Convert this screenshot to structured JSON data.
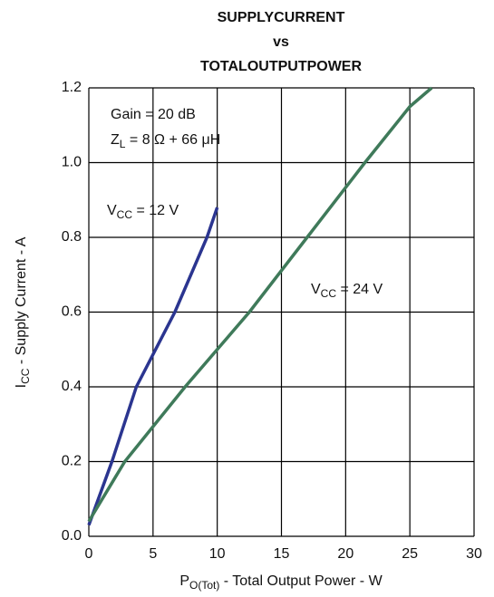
{
  "chart_data": {
    "type": "line",
    "title": [
      "SUPPLYCURRENT",
      "vs",
      "TOTALOUTPUTPOWER"
    ],
    "x_label": {
      "main": "P",
      "sub": "O(Tot)",
      "rest": " - Total Output Power - W"
    },
    "y_label": {
      "main": "I",
      "sub": "CC",
      "rest": " - Supply Current - A"
    },
    "annotations": [
      {
        "main": "Gain = 20 dB"
      },
      {
        "main": "Z",
        "sub": "L",
        "rest": " = 8 Ω + 66 μH"
      }
    ],
    "xlim": [
      0,
      30
    ],
    "ylim": [
      0,
      1.2
    ],
    "xticks": [
      0,
      5,
      10,
      15,
      20,
      25,
      30
    ],
    "yticks": [
      {
        "value": 0,
        "label": "0.0"
      },
      0.2,
      0.4,
      0.6,
      0.8,
      {
        "value": 1,
        "label": "1.0"
      },
      1.2
    ],
    "grid": true,
    "series": [
      {
        "label": {
          "main": "V",
          "sub": "CC",
          "rest": " = 12 V"
        },
        "color": "#2b3590",
        "x": [
          0,
          1.8,
          3.7,
          6.7,
          9.2,
          10
        ],
        "values": [
          0.03,
          0.2,
          0.4,
          0.6,
          0.8,
          0.88
        ]
      },
      {
        "label": {
          "main": "V",
          "sub": "CC",
          "rest": " = 24 V"
        },
        "color": "#3f7a5a",
        "x": [
          0,
          2.8,
          7.5,
          12.5,
          17,
          21.5,
          25,
          26.7
        ],
        "values": [
          0.04,
          0.2,
          0.4,
          0.6,
          0.8,
          1.0,
          1.15,
          1.2
        ]
      }
    ]
  }
}
